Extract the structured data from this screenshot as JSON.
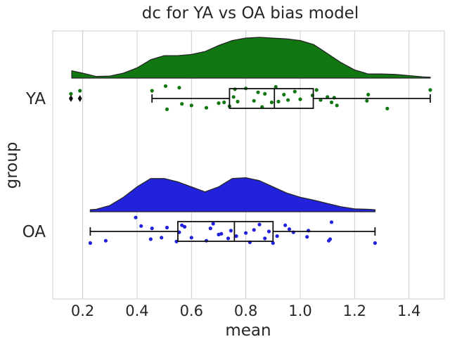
{
  "chart_data": {
    "type": "raincloud",
    "title": "dc for YA vs OA bias model",
    "xlabel": "mean",
    "ylabel": "group",
    "xlim": [
      0.09,
      1.53
    ],
    "xticks": [
      0.2,
      0.4,
      0.6,
      0.8,
      1.0,
      1.2,
      1.4
    ],
    "xtick_labels": [
      "0.2",
      "0.4",
      "0.6",
      "0.8",
      "1.0",
      "1.2",
      "1.4"
    ],
    "grid": "vertical",
    "groups": [
      {
        "name": "YA",
        "color": "#117711",
        "box": {
          "whisker_low": 0.455,
          "q1": 0.74,
          "median": 0.905,
          "q3": 1.048,
          "whisker_high": 1.478
        },
        "outliers": [
          0.157,
          0.19
        ],
        "density": [
          [
            0.16,
            0.18
          ],
          [
            0.2,
            0.12
          ],
          [
            0.25,
            0.04
          ],
          [
            0.3,
            0.05
          ],
          [
            0.35,
            0.12
          ],
          [
            0.4,
            0.25
          ],
          [
            0.45,
            0.45
          ],
          [
            0.5,
            0.55
          ],
          [
            0.55,
            0.55
          ],
          [
            0.6,
            0.58
          ],
          [
            0.65,
            0.65
          ],
          [
            0.7,
            0.8
          ],
          [
            0.75,
            0.92
          ],
          [
            0.8,
            0.98
          ],
          [
            0.85,
            1.0
          ],
          [
            0.9,
            0.98
          ],
          [
            0.95,
            0.96
          ],
          [
            1.0,
            0.92
          ],
          [
            1.05,
            0.82
          ],
          [
            1.1,
            0.6
          ],
          [
            1.15,
            0.38
          ],
          [
            1.2,
            0.2
          ],
          [
            1.25,
            0.1
          ],
          [
            1.3,
            0.1
          ],
          [
            1.35,
            0.09
          ],
          [
            1.4,
            0.06
          ],
          [
            1.45,
            0.03
          ],
          [
            1.478,
            0.02
          ]
        ],
        "points": [
          [
            0.157,
            -0.6
          ],
          [
            0.19,
            -1.0
          ],
          [
            0.455,
            -1.0
          ],
          [
            0.505,
            -1.6
          ],
          [
            0.51,
            1.4
          ],
          [
            0.555,
            -1.4
          ],
          [
            0.565,
            0.7
          ],
          [
            0.6,
            0.9
          ],
          [
            0.655,
            1.2
          ],
          [
            0.7,
            0.6
          ],
          [
            0.72,
            0.5
          ],
          [
            0.74,
            1.0
          ],
          [
            0.755,
            -0.2
          ],
          [
            0.76,
            -1.2
          ],
          [
            0.77,
            0.4
          ],
          [
            0.8,
            -1.3
          ],
          [
            0.83,
            0.3
          ],
          [
            0.845,
            -0.8
          ],
          [
            0.86,
            1.1
          ],
          [
            0.87,
            -0.6
          ],
          [
            0.895,
            0.5
          ],
          [
            0.91,
            -1.5
          ],
          [
            0.92,
            0.4
          ],
          [
            0.94,
            -0.5
          ],
          [
            0.955,
            0.2
          ],
          [
            0.98,
            -0.9
          ],
          [
            1.0,
            0.1
          ],
          [
            1.045,
            -0.4
          ],
          [
            1.06,
            -1.1
          ],
          [
            1.075,
            0.2
          ],
          [
            1.1,
            -0.2
          ],
          [
            1.115,
            0.5
          ],
          [
            1.125,
            -0.1
          ],
          [
            1.135,
            0.9
          ],
          [
            1.245,
            0.3
          ],
          [
            1.25,
            -0.5
          ],
          [
            1.32,
            1.3
          ],
          [
            1.478,
            -1.1
          ]
        ]
      },
      {
        "name": "OA",
        "color": "#2222dd",
        "box": {
          "whisker_low": 0.228,
          "q1": 0.55,
          "median": 0.758,
          "q3": 0.9,
          "whisker_high": 1.275
        },
        "outliers": [],
        "density": [
          [
            0.228,
            0.05
          ],
          [
            0.25,
            0.06
          ],
          [
            0.3,
            0.15
          ],
          [
            0.35,
            0.35
          ],
          [
            0.4,
            0.6
          ],
          [
            0.45,
            0.8
          ],
          [
            0.5,
            0.8
          ],
          [
            0.55,
            0.72
          ],
          [
            0.6,
            0.6
          ],
          [
            0.65,
            0.48
          ],
          [
            0.7,
            0.6
          ],
          [
            0.75,
            0.8
          ],
          [
            0.8,
            0.82
          ],
          [
            0.85,
            0.75
          ],
          [
            0.9,
            0.6
          ],
          [
            0.95,
            0.45
          ],
          [
            1.0,
            0.35
          ],
          [
            1.05,
            0.28
          ],
          [
            1.1,
            0.2
          ],
          [
            1.15,
            0.12
          ],
          [
            1.2,
            0.07
          ],
          [
            1.25,
            0.06
          ],
          [
            1.275,
            0.05
          ]
        ],
        "points": [
          [
            0.228,
            1.5
          ],
          [
            0.285,
            1.2
          ],
          [
            0.395,
            -1.8
          ],
          [
            0.415,
            -0.7
          ],
          [
            0.45,
            1.0
          ],
          [
            0.455,
            -0.4
          ],
          [
            0.49,
            0.8
          ],
          [
            0.51,
            -0.5
          ],
          [
            0.545,
            1.3
          ],
          [
            0.555,
            0.1
          ],
          [
            0.565,
            -0.8
          ],
          [
            0.575,
            -0.6
          ],
          [
            0.6,
            0.8
          ],
          [
            0.655,
            1.2
          ],
          [
            0.67,
            -0.4
          ],
          [
            0.68,
            -1.0
          ],
          [
            0.7,
            0.4
          ],
          [
            0.71,
            0.3
          ],
          [
            0.735,
            0.9
          ],
          [
            0.745,
            -0.1
          ],
          [
            0.765,
            0.6
          ],
          [
            0.8,
            0.2
          ],
          [
            0.815,
            1.4
          ],
          [
            0.83,
            -0.2
          ],
          [
            0.85,
            -0.9
          ],
          [
            0.87,
            0.9
          ],
          [
            0.885,
            0.0
          ],
          [
            0.9,
            1.5
          ],
          [
            0.915,
            0.6
          ],
          [
            0.945,
            -0.8
          ],
          [
            0.96,
            -0.3
          ],
          [
            0.975,
            0.1
          ],
          [
            1.025,
            0.7
          ],
          [
            1.03,
            -0.1
          ],
          [
            1.105,
            1.2
          ],
          [
            1.11,
            1.0
          ],
          [
            1.115,
            -1.2
          ],
          [
            1.275,
            1.5
          ]
        ]
      }
    ]
  }
}
